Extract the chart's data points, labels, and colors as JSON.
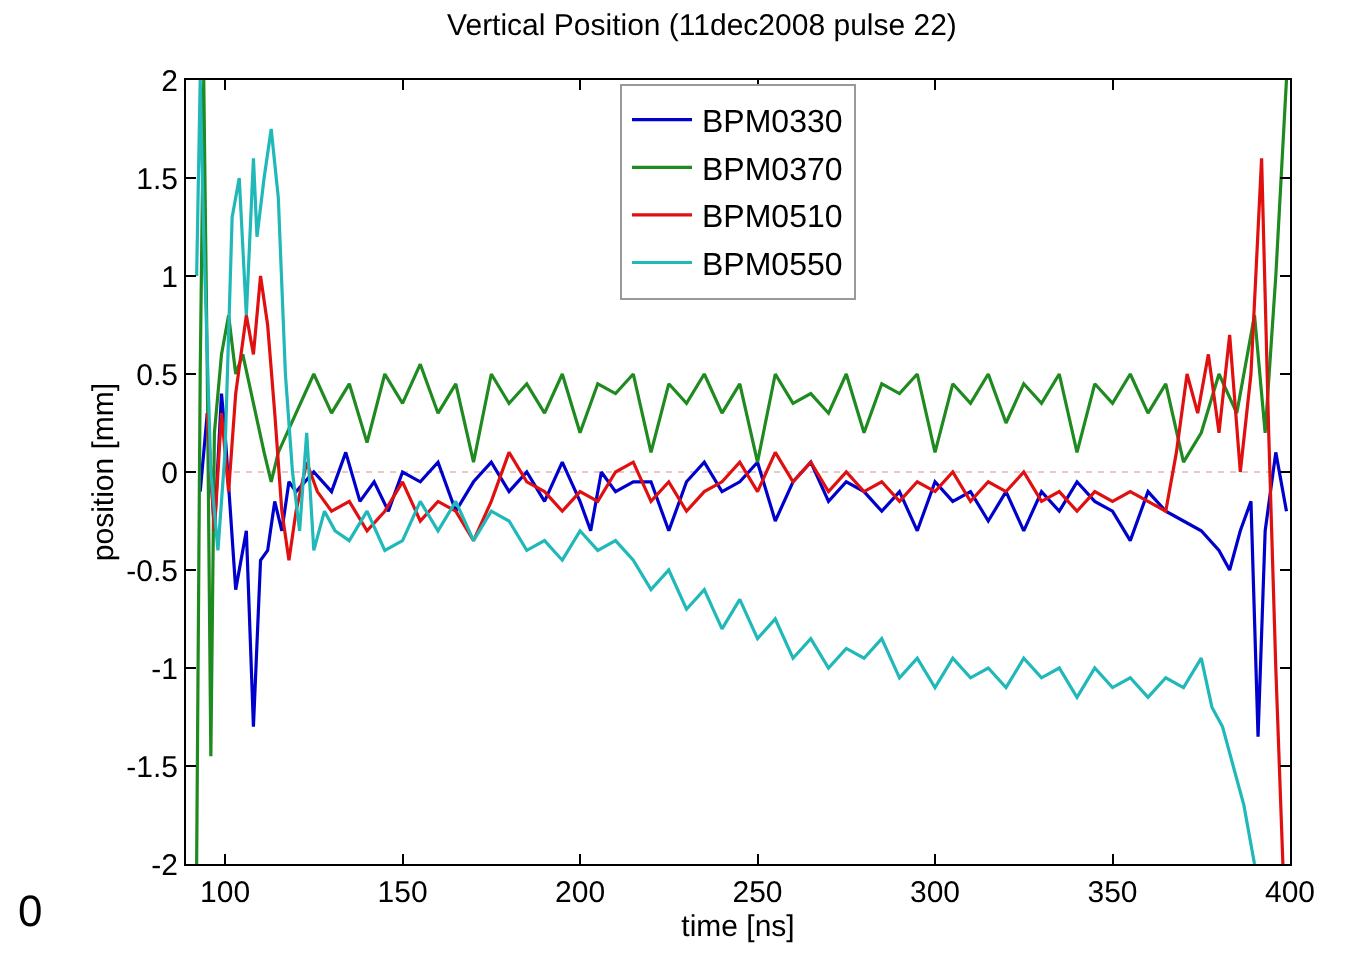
{
  "chart_data": {
    "type": "line",
    "title": "Vertical Position (11dec2008 pulse 22)",
    "xlabel": "time [ns]",
    "ylabel": "position [mm]",
    "xlim": [
      89,
      400
    ],
    "xticks": [
      100,
      150,
      200,
      250,
      300,
      350,
      400
    ],
    "ylim": [
      -2,
      2
    ],
    "yticks": [
      -2,
      -1.5,
      -1,
      -0.5,
      0,
      0.5,
      1,
      1.5,
      2
    ],
    "grid": false,
    "legend": "top",
    "marker": "none",
    "line_style": "solid",
    "ref_lines": [
      {
        "axis": "y",
        "value": 0,
        "label": null,
        "color": "#e8c8c8",
        "line_style": "dotted"
      }
    ],
    "annotations": [
      "0"
    ],
    "series": [
      {
        "name": "BPM0330",
        "color": "#0000cc",
        "x": [
          93,
          95,
          97,
          99,
          100,
          103,
          106,
          108,
          110,
          112,
          114,
          116,
          118,
          120,
          125,
          130,
          134,
          138,
          142,
          146,
          150,
          155,
          160,
          165,
          170,
          175,
          180,
          185,
          190,
          195,
          200,
          203,
          206,
          210,
          215,
          220,
          225,
          230,
          235,
          240,
          245,
          250,
          255,
          260,
          265,
          270,
          275,
          280,
          285,
          290,
          295,
          300,
          305,
          310,
          315,
          320,
          325,
          330,
          335,
          340,
          345,
          350,
          355,
          360,
          365,
          370,
          375,
          380,
          383,
          386,
          389,
          391,
          393,
          396,
          399
        ],
        "values": [
          -0.1,
          0.3,
          -0.3,
          0.4,
          0.2,
          -0.6,
          -0.3,
          -1.3,
          -0.45,
          -0.4,
          -0.15,
          -0.3,
          -0.05,
          -0.1,
          0,
          -0.1,
          0.1,
          -0.15,
          -0.05,
          -0.2,
          0,
          -0.05,
          0.05,
          -0.2,
          -0.05,
          0.05,
          -0.1,
          0,
          -0.15,
          0.05,
          -0.15,
          -0.3,
          0,
          -0.1,
          -0.05,
          -0.05,
          -0.3,
          -0.05,
          0.05,
          -0.1,
          -0.05,
          0.05,
          -0.25,
          -0.05,
          0.05,
          -0.15,
          -0.05,
          -0.1,
          -0.2,
          -0.1,
          -0.3,
          -0.05,
          -0.15,
          -0.1,
          -0.25,
          -0.1,
          -0.3,
          -0.1,
          -0.2,
          -0.05,
          -0.15,
          -0.2,
          -0.35,
          -0.1,
          -0.2,
          -0.25,
          -0.3,
          -0.4,
          -0.5,
          -0.3,
          -0.15,
          -1.35,
          -0.3,
          0.1,
          -0.2
        ]
      },
      {
        "name": "BPM0370",
        "color": "#1f8a1f",
        "x": [
          92,
          93,
          94,
          95,
          96,
          97,
          99,
          101,
          103,
          105,
          108,
          111,
          113,
          115,
          120,
          125,
          130,
          135,
          140,
          145,
          150,
          155,
          160,
          165,
          170,
          175,
          180,
          185,
          190,
          195,
          200,
          205,
          210,
          215,
          220,
          225,
          230,
          235,
          240,
          245,
          250,
          255,
          260,
          265,
          270,
          275,
          280,
          285,
          290,
          295,
          300,
          305,
          310,
          315,
          320,
          325,
          330,
          335,
          340,
          345,
          350,
          355,
          360,
          365,
          370,
          375,
          380,
          385,
          390,
          393,
          396,
          399
        ],
        "values": [
          -2,
          0.5,
          2,
          0.5,
          -1.45,
          0.2,
          0.6,
          0.8,
          0.5,
          0.6,
          0.35,
          0.1,
          -0.05,
          0.1,
          0.3,
          0.5,
          0.3,
          0.45,
          0.15,
          0.5,
          0.35,
          0.55,
          0.3,
          0.45,
          0.05,
          0.5,
          0.35,
          0.45,
          0.3,
          0.5,
          0.2,
          0.45,
          0.4,
          0.5,
          0.1,
          0.45,
          0.35,
          0.5,
          0.3,
          0.45,
          0.05,
          0.5,
          0.35,
          0.4,
          0.3,
          0.5,
          0.2,
          0.45,
          0.4,
          0.5,
          0.1,
          0.45,
          0.35,
          0.5,
          0.25,
          0.45,
          0.35,
          0.5,
          0.1,
          0.45,
          0.35,
          0.5,
          0.3,
          0.45,
          0.05,
          0.2,
          0.5,
          0.3,
          0.8,
          0.2,
          1.0,
          2.0
        ]
      },
      {
        "name": "BPM0510",
        "color": "#e01010",
        "x": [
          95,
          97,
          99,
          101,
          103,
          106,
          108,
          110,
          112,
          114,
          116,
          118,
          120,
          123,
          126,
          130,
          135,
          140,
          145,
          150,
          155,
          160,
          165,
          170,
          175,
          180,
          185,
          190,
          195,
          200,
          205,
          210,
          215,
          220,
          225,
          230,
          235,
          240,
          245,
          250,
          255,
          260,
          265,
          270,
          275,
          280,
          285,
          290,
          295,
          300,
          305,
          310,
          315,
          320,
          325,
          330,
          335,
          340,
          345,
          350,
          355,
          360,
          365,
          368,
          371,
          374,
          377,
          380,
          383,
          386,
          389,
          392,
          394,
          396,
          398
        ],
        "values": [
          0.3,
          -0.3,
          0.3,
          -0.1,
          0.4,
          0.8,
          0.6,
          1.0,
          0.75,
          0.3,
          -0.2,
          -0.45,
          -0.2,
          0.05,
          -0.1,
          -0.2,
          -0.15,
          -0.3,
          -0.2,
          -0.05,
          -0.25,
          -0.15,
          -0.2,
          -0.35,
          -0.15,
          0.1,
          -0.05,
          -0.1,
          -0.2,
          -0.1,
          -0.15,
          0,
          0.05,
          -0.15,
          -0.05,
          -0.2,
          -0.1,
          -0.05,
          0.05,
          -0.1,
          0.1,
          -0.05,
          0.05,
          -0.1,
          0,
          -0.1,
          -0.05,
          -0.15,
          -0.05,
          -0.1,
          0,
          -0.15,
          -0.05,
          -0.1,
          0,
          -0.15,
          -0.1,
          -0.2,
          -0.1,
          -0.15,
          -0.1,
          -0.15,
          -0.2,
          0.1,
          0.5,
          0.3,
          0.6,
          0.2,
          0.7,
          0,
          0.5,
          1.6,
          0.2,
          -1.0,
          -2.0
        ]
      },
      {
        "name": "BPM0550",
        "color": "#20b8b8",
        "x": [
          92,
          93,
          94,
          96,
          98,
          100,
          102,
          104,
          106,
          108,
          109,
          111,
          113,
          115,
          117,
          119,
          121,
          123,
          125,
          128,
          131,
          135,
          140,
          145,
          150,
          155,
          160,
          165,
          170,
          175,
          180,
          185,
          190,
          195,
          200,
          205,
          210,
          215,
          220,
          225,
          230,
          235,
          240,
          245,
          250,
          255,
          260,
          265,
          270,
          275,
          280,
          285,
          290,
          295,
          300,
          305,
          310,
          315,
          320,
          325,
          330,
          335,
          340,
          345,
          350,
          355,
          360,
          365,
          370,
          375,
          378,
          381,
          384,
          387,
          390
        ],
        "values": [
          1.0,
          2.0,
          1.2,
          0,
          -0.4,
          0.1,
          1.3,
          1.5,
          0.8,
          1.6,
          1.2,
          1.5,
          1.75,
          1.4,
          0.5,
          0,
          -0.3,
          0.2,
          -0.4,
          -0.2,
          -0.3,
          -0.35,
          -0.2,
          -0.4,
          -0.35,
          -0.15,
          -0.3,
          -0.15,
          -0.35,
          -0.2,
          -0.25,
          -0.4,
          -0.35,
          -0.45,
          -0.3,
          -0.4,
          -0.35,
          -0.45,
          -0.6,
          -0.5,
          -0.7,
          -0.6,
          -0.8,
          -0.65,
          -0.85,
          -0.75,
          -0.95,
          -0.85,
          -1.0,
          -0.9,
          -0.95,
          -0.85,
          -1.05,
          -0.95,
          -1.1,
          -0.95,
          -1.05,
          -1.0,
          -1.1,
          -0.95,
          -1.05,
          -1.0,
          -1.15,
          -1.0,
          -1.1,
          -1.05,
          -1.15,
          -1.05,
          -1.1,
          -0.95,
          -1.2,
          -1.3,
          -1.5,
          -1.7,
          -2.0
        ]
      }
    ]
  }
}
